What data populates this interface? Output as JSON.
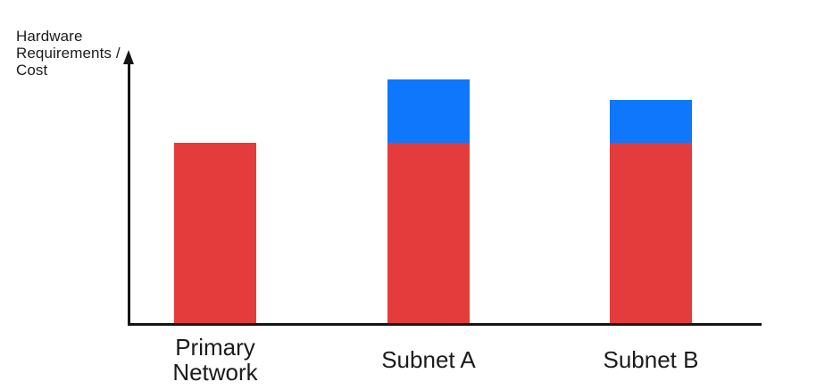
{
  "chart_data": {
    "type": "bar",
    "stacked": true,
    "title": "",
    "xlabel": "",
    "ylabel": "Hardware Requirements / Cost",
    "categories": [
      "Primary Network",
      "Subnet A",
      "Subnet B"
    ],
    "series": [
      {
        "name": "red",
        "color": "#E43B3C",
        "values": [
          100,
          100,
          100
        ]
      },
      {
        "name": "blue",
        "color": "#0F77FB",
        "values": [
          0,
          35,
          24
        ]
      }
    ],
    "ylim": [
      0,
      160
    ],
    "value_units": "relative (axis has no numeric scale)",
    "grid": false,
    "legend": false,
    "axis_color": "#151515",
    "axis_arrow": "up"
  }
}
